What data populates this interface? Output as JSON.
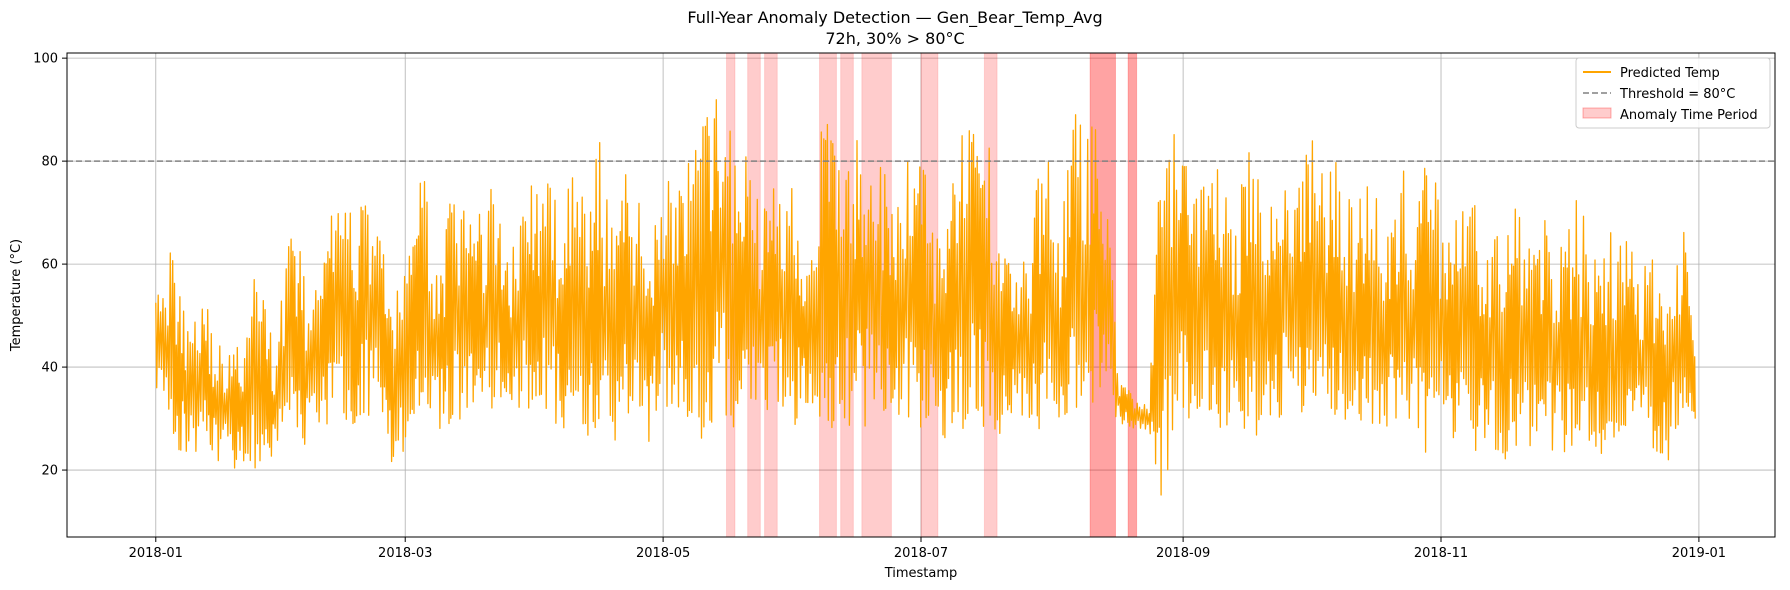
{
  "chart_data": {
    "type": "line",
    "title": "Full-Year Anomaly Detection — Gen_Bear_Temp_Avg",
    "subtitle": "72h, 30% > 80°C",
    "xlabel": "Timestamp",
    "ylabel": "Temperature (°C)",
    "x_range": [
      "2017-12-11",
      "2019-01-19"
    ],
    "ylim": [
      7,
      101
    ],
    "x_ticks": [
      "2018-01",
      "2018-03",
      "2018-05",
      "2018-07",
      "2018-09",
      "2018-11",
      "2019-01"
    ],
    "y_ticks": [
      20,
      40,
      60,
      80,
      100
    ],
    "grid": true,
    "legend_position": "top-right",
    "threshold": {
      "value": 80,
      "label": "Threshold = 80°C",
      "color": "#808080"
    },
    "series": [
      {
        "name": "Predicted Temp",
        "color": "#FFA500",
        "x": [
          "2018-01-01",
          "2018-01-05",
          "2018-01-08",
          "2018-01-12",
          "2018-01-15",
          "2018-01-19",
          "2018-01-22",
          "2018-01-26",
          "2018-01-29",
          "2018-02-02",
          "2018-02-05",
          "2018-02-09",
          "2018-02-12",
          "2018-02-16",
          "2018-02-19",
          "2018-02-23",
          "2018-02-26",
          "2018-03-02",
          "2018-03-05",
          "2018-03-09",
          "2018-03-12",
          "2018-03-16",
          "2018-03-19",
          "2018-03-23",
          "2018-03-26",
          "2018-03-30",
          "2018-04-02",
          "2018-04-06",
          "2018-04-09",
          "2018-04-13",
          "2018-04-16",
          "2018-04-20",
          "2018-04-23",
          "2018-04-27",
          "2018-04-30",
          "2018-05-04",
          "2018-05-07",
          "2018-05-11",
          "2018-05-14",
          "2018-05-18",
          "2018-05-21",
          "2018-05-25",
          "2018-05-28",
          "2018-06-01",
          "2018-06-04",
          "2018-06-08",
          "2018-06-11",
          "2018-06-15",
          "2018-06-18",
          "2018-06-22",
          "2018-06-25",
          "2018-06-29",
          "2018-07-02",
          "2018-07-06",
          "2018-07-09",
          "2018-07-13",
          "2018-07-16",
          "2018-07-20",
          "2018-07-23",
          "2018-07-27",
          "2018-07-30",
          "2018-08-03",
          "2018-08-06",
          "2018-08-10",
          "2018-08-13",
          "2018-08-17",
          "2018-08-20",
          "2018-08-24",
          "2018-08-27",
          "2018-08-31",
          "2018-09-03",
          "2018-09-07",
          "2018-09-10",
          "2018-09-14",
          "2018-09-17",
          "2018-09-21",
          "2018-09-24",
          "2018-09-28",
          "2018-10-01",
          "2018-10-05",
          "2018-10-08",
          "2018-10-12",
          "2018-10-15",
          "2018-10-19",
          "2018-10-22",
          "2018-10-26",
          "2018-10-29",
          "2018-11-02",
          "2018-11-05",
          "2018-11-09",
          "2018-11-12",
          "2018-11-16",
          "2018-11-19",
          "2018-11-23",
          "2018-11-26",
          "2018-11-30",
          "2018-12-03",
          "2018-12-07",
          "2018-12-10",
          "2018-12-14",
          "2018-12-17",
          "2018-12-21",
          "2018-12-24",
          "2018-12-28",
          "2018-12-31"
        ],
        "y_high": [
          66,
          62,
          52,
          58,
          45,
          44,
          46,
          66,
          40,
          75,
          58,
          56,
          75,
          70,
          74,
          76,
          48,
          74,
          79,
          60,
          75,
          70,
          72,
          78,
          62,
          78,
          77,
          74,
          80,
          72,
          84,
          71,
          82,
          65,
          78,
          81,
          80,
          89,
          93,
          85,
          83,
          72,
          80,
          80,
          62,
          90,
          85,
          84,
          86,
          79,
          70,
          90,
          82,
          65,
          90,
          87,
          91,
          70,
          62,
          64,
          88,
          68,
          91,
          88,
          86,
          38,
          35,
          33,
          88,
          86,
          80,
          86,
          79,
          74,
          86,
          68,
          84,
          78,
          85,
          81,
          80,
          72,
          84,
          70,
          80,
          75,
          82,
          72,
          70,
          73,
          64,
          70,
          71,
          67,
          70,
          64,
          74,
          63,
          68,
          66,
          64,
          62,
          60,
          73,
          42
        ],
        "y_low": [
          36,
          24,
          22,
          24,
          22,
          20,
          20,
          20,
          22,
          26,
          24,
          28,
          30,
          26,
          30,
          30,
          19,
          25,
          28,
          28,
          28,
          30,
          30,
          28,
          30,
          32,
          30,
          28,
          26,
          24,
          24,
          26,
          30,
          22,
          30,
          28,
          25,
          26,
          30,
          28,
          28,
          28,
          28,
          28,
          30,
          28,
          28,
          27,
          28,
          28,
          28,
          28,
          26,
          26,
          28,
          28,
          28,
          26,
          28,
          27,
          28,
          28,
          32,
          33,
          32,
          29,
          28,
          27,
          12,
          28,
          30,
          28,
          26,
          28,
          26,
          28,
          30,
          26,
          28,
          28,
          30,
          28,
          27,
          28,
          27,
          24,
          22,
          24,
          24,
          22,
          24,
          22,
          24,
          22,
          24,
          22,
          22,
          24,
          21,
          24,
          22,
          22,
          22,
          22,
          30
        ]
      }
    ],
    "anomaly_periods": {
      "label": "Anomaly Time Period",
      "color": "#FF0000",
      "ranges": [
        [
          "2018-05-16",
          "2018-05-18"
        ],
        [
          "2018-05-21",
          "2018-05-24"
        ],
        [
          "2018-05-25",
          "2018-05-28"
        ],
        [
          "2018-06-07",
          "2018-06-11"
        ],
        [
          "2018-06-12",
          "2018-06-15"
        ],
        [
          "2018-06-17",
          "2018-06-24"
        ],
        [
          "2018-07-01",
          "2018-07-05"
        ],
        [
          "2018-07-16",
          "2018-07-19"
        ],
        [
          "2018-08-10",
          "2018-08-16"
        ],
        [
          "2018-08-10",
          "2018-08-16"
        ],
        [
          "2018-08-19",
          "2018-08-21"
        ],
        [
          "2018-08-19",
          "2018-08-21"
        ]
      ]
    }
  }
}
